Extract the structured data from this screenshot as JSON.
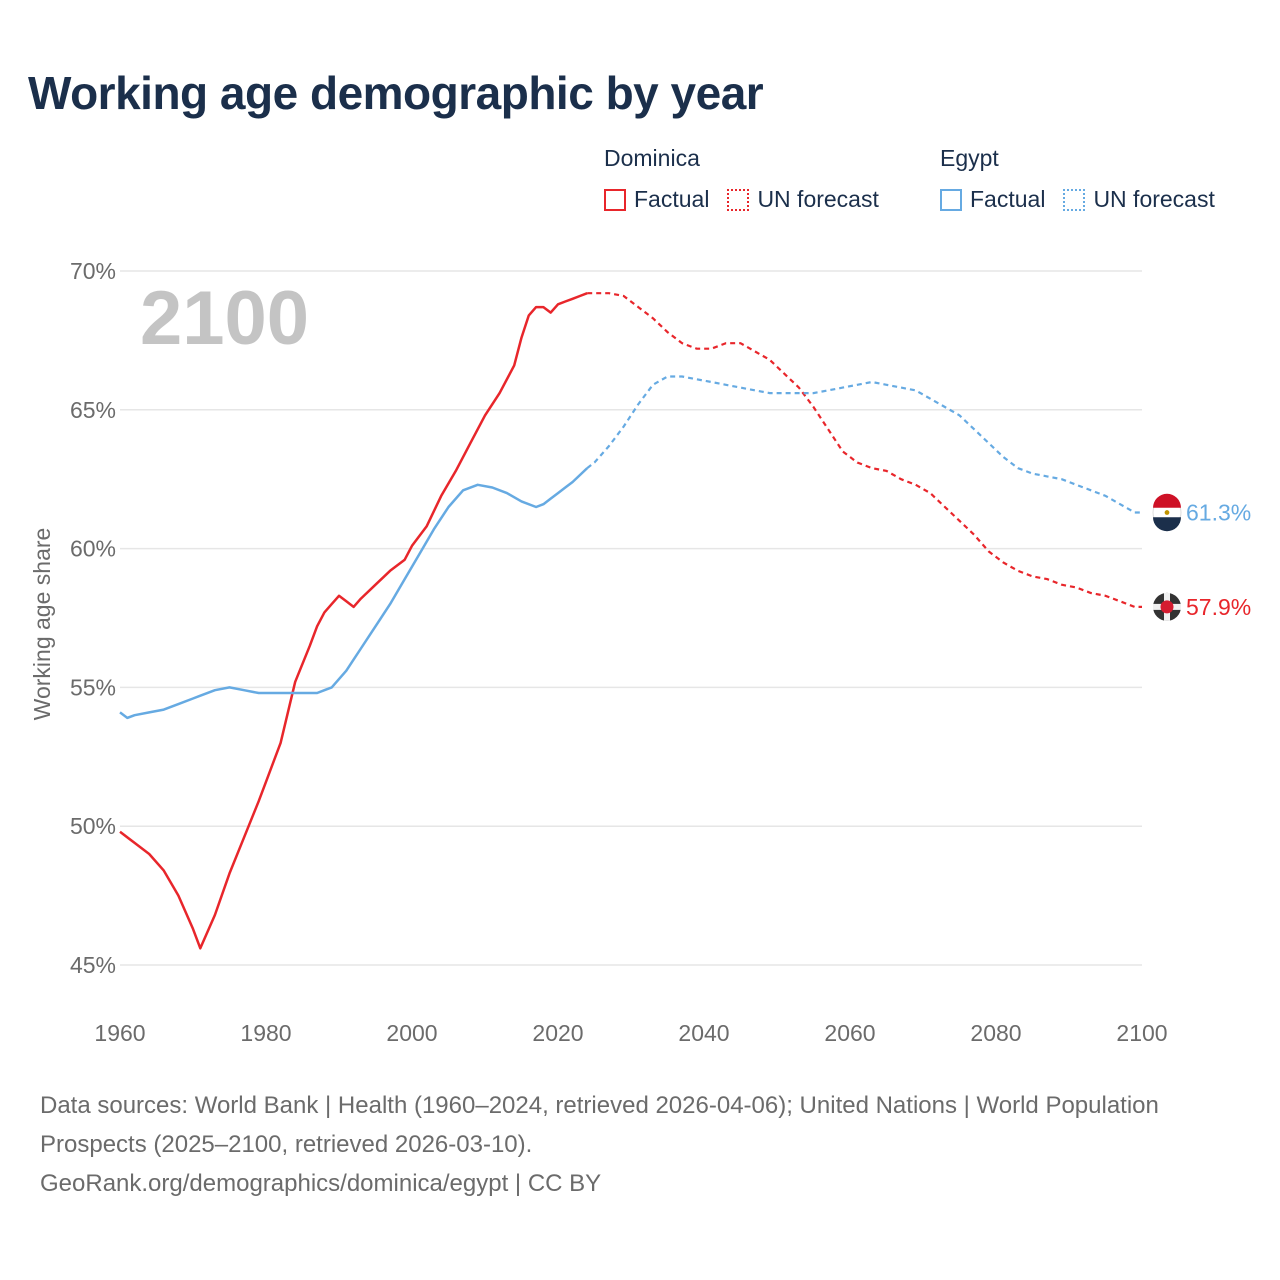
{
  "title": "Working age demographic by year",
  "year_label": "2100",
  "legend": [
    {
      "group": "Dominica",
      "color": "#e8262b",
      "items": [
        {
          "label": "Factual",
          "style": "solid"
        },
        {
          "label": "UN forecast",
          "style": "dotted"
        }
      ]
    },
    {
      "group": "Egypt",
      "color": "#66aae2",
      "items": [
        {
          "label": "Factual",
          "style": "solid"
        },
        {
          "label": "UN forecast",
          "style": "dotted"
        }
      ]
    }
  ],
  "footer": {
    "sources": "Data sources: World Bank | Health (1960–2024, retrieved 2026-04-06); United Nations | World Population Prospects (2025–2100, retrieved 2026-03-10).",
    "link": "GeoRank.org/demographics/dominica/egypt | CC BY"
  },
  "chart_data": {
    "type": "line",
    "ylabel": "Working age share",
    "xlabel": "",
    "xlim": [
      1960,
      2100
    ],
    "ylim": [
      45,
      70
    ],
    "x_ticks": [
      "1960",
      "1980",
      "2000",
      "2020",
      "2040",
      "2060",
      "2080",
      "2100"
    ],
    "x_tick_values": [
      1960,
      1980,
      2000,
      2020,
      2040,
      2060,
      2080,
      2100
    ],
    "y_ticks": [
      "45%",
      "50%",
      "55%",
      "60%",
      "65%",
      "70%"
    ],
    "y_tick_values": [
      45,
      50,
      55,
      60,
      65,
      70
    ],
    "forecast_start": 2024,
    "series": [
      {
        "name": "Dominica",
        "color": "#e8262b",
        "end_label": "57.9%",
        "x": [
          1960,
          1962,
          1964,
          1966,
          1968,
          1969,
          1970,
          1971,
          1973,
          1975,
          1977,
          1979,
          1980,
          1982,
          1984,
          1986,
          1987,
          1988,
          1989,
          1990,
          1991,
          1992,
          1993,
          1995,
          1997,
          1999,
          2000,
          2002,
          2004,
          2006,
          2008,
          2010,
          2012,
          2014,
          2015,
          2016,
          2017,
          2018,
          2019,
          2020,
          2021,
          2022,
          2023,
          2024,
          2025,
          2027,
          2029,
          2031,
          2033,
          2035,
          2037,
          2039,
          2041,
          2043,
          2045,
          2047,
          2049,
          2051,
          2053,
          2055,
          2057,
          2059,
          2061,
          2063,
          2065,
          2067,
          2069,
          2071,
          2073,
          2075,
          2077,
          2079,
          2081,
          2083,
          2085,
          2087,
          2089,
          2091,
          2093,
          2095,
          2097,
          2099,
          2100
        ],
        "values": [
          49.8,
          49.4,
          49.0,
          48.4,
          47.5,
          46.9,
          46.3,
          45.6,
          46.8,
          48.3,
          49.6,
          50.9,
          51.6,
          53.0,
          55.2,
          56.5,
          57.2,
          57.7,
          58.0,
          58.3,
          58.1,
          57.9,
          58.2,
          58.7,
          59.2,
          59.6,
          60.1,
          60.8,
          61.9,
          62.8,
          63.8,
          64.8,
          65.6,
          66.6,
          67.6,
          68.4,
          68.7,
          68.7,
          68.5,
          68.8,
          68.9,
          69.0,
          69.1,
          69.2,
          69.2,
          69.2,
          69.1,
          68.7,
          68.3,
          67.8,
          67.4,
          67.2,
          67.2,
          67.4,
          67.4,
          67.1,
          66.8,
          66.3,
          65.8,
          65.1,
          64.3,
          63.5,
          63.1,
          62.9,
          62.8,
          62.5,
          62.3,
          62.0,
          61.5,
          61.0,
          60.5,
          59.9,
          59.5,
          59.2,
          59.0,
          58.9,
          58.7,
          58.6,
          58.4,
          58.3,
          58.1,
          57.9,
          57.9
        ]
      },
      {
        "name": "Egypt",
        "color": "#66aae2",
        "end_label": "61.3%",
        "x": [
          1960,
          1961,
          1962,
          1964,
          1966,
          1968,
          1970,
          1971,
          1973,
          1975,
          1977,
          1979,
          1980,
          1982,
          1984,
          1986,
          1987,
          1988,
          1989,
          1990,
          1991,
          1992,
          1993,
          1995,
          1997,
          1999,
          2001,
          2003,
          2005,
          2007,
          2009,
          2011,
          2013,
          2015,
          2017,
          2018,
          2019,
          2020,
          2021,
          2022,
          2024,
          2025,
          2027,
          2029,
          2031,
          2033,
          2035,
          2037,
          2039,
          2041,
          2043,
          2045,
          2047,
          2049,
          2051,
          2053,
          2055,
          2057,
          2059,
          2061,
          2063,
          2065,
          2067,
          2069,
          2071,
          2073,
          2075,
          2077,
          2079,
          2081,
          2083,
          2085,
          2087,
          2089,
          2091,
          2093,
          2095,
          2097,
          2099,
          2100
        ],
        "values": [
          54.1,
          53.9,
          54.0,
          54.1,
          54.2,
          54.4,
          54.6,
          54.7,
          54.9,
          55.0,
          54.9,
          54.8,
          54.8,
          54.8,
          54.8,
          54.8,
          54.8,
          54.9,
          55.0,
          55.3,
          55.6,
          56.0,
          56.4,
          57.2,
          58.0,
          58.9,
          59.8,
          60.7,
          61.5,
          62.1,
          62.3,
          62.2,
          62.0,
          61.7,
          61.5,
          61.6,
          61.8,
          62.0,
          62.2,
          62.4,
          62.9,
          63.1,
          63.7,
          64.4,
          65.2,
          65.9,
          66.2,
          66.2,
          66.1,
          66.0,
          65.9,
          65.8,
          65.7,
          65.6,
          65.6,
          65.6,
          65.6,
          65.7,
          65.8,
          65.9,
          66.0,
          65.9,
          65.8,
          65.7,
          65.4,
          65.1,
          64.8,
          64.3,
          63.8,
          63.3,
          62.9,
          62.7,
          62.6,
          62.5,
          62.3,
          62.1,
          61.9,
          61.6,
          61.3,
          61.3
        ]
      }
    ]
  }
}
